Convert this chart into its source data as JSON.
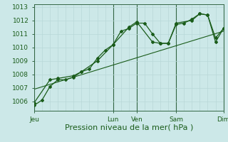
{
  "xlabel": "Pression niveau de la mer( hPa )",
  "background_color": "#cce8e8",
  "grid_color_minor": "#b8d8d8",
  "grid_color_major_y": "#b8d8d8",
  "grid_color_major_x": "#336644",
  "line_color": "#1a5c1a",
  "ylim": [
    1005.3,
    1013.2
  ],
  "yticks": [
    1006,
    1007,
    1008,
    1009,
    1010,
    1011,
    1012,
    1013
  ],
  "xtick_labels": [
    "Jeu",
    "Lun",
    "Ven",
    "Sam",
    "Dim"
  ],
  "xtick_positions": [
    0,
    10,
    13,
    18,
    24
  ],
  "num_minor_x": 24,
  "series1_x": [
    0,
    1,
    2,
    3,
    4,
    5,
    6,
    7,
    8,
    9,
    10,
    11,
    12,
    13,
    14,
    15,
    16,
    17,
    18,
    19,
    20,
    21,
    22,
    23,
    24
  ],
  "series1_y": [
    1005.7,
    1006.1,
    1007.1,
    1007.6,
    1007.6,
    1007.8,
    1008.2,
    1008.4,
    1009.2,
    1009.8,
    1010.2,
    1011.2,
    1011.4,
    1011.8,
    1011.8,
    1011.0,
    1010.3,
    1010.3,
    1011.7,
    1011.8,
    1012.1,
    1012.5,
    1012.4,
    1010.7,
    1011.4
  ],
  "series2_x": [
    0,
    2,
    3,
    5,
    6,
    8,
    10,
    12,
    13,
    15,
    16,
    17,
    18,
    20,
    21,
    22,
    23,
    24
  ],
  "series2_y": [
    1005.9,
    1007.6,
    1007.7,
    1007.9,
    1008.2,
    1009.0,
    1010.2,
    1011.5,
    1011.9,
    1010.4,
    1010.3,
    1010.3,
    1011.8,
    1012.0,
    1012.5,
    1012.4,
    1010.4,
    1011.4
  ],
  "trend_x": [
    0,
    24
  ],
  "trend_y": [
    1006.9,
    1011.2
  ],
  "xlabel_fontsize": 8,
  "tick_fontsize": 6.5
}
